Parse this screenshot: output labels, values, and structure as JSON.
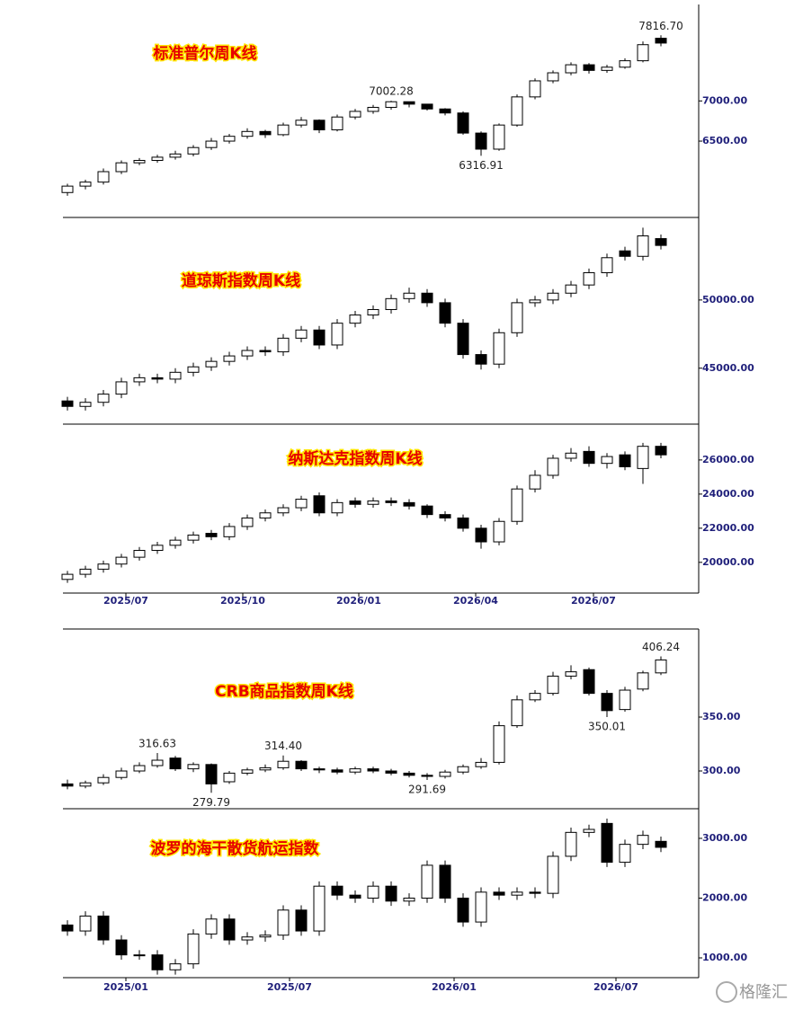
{
  "chart_data": [
    {
      "type": "candlestick",
      "xlim": [
        -0.25,
        35.1
      ],
      "xticks": [
        {
          "value": 3.25,
          "label": "2025/07"
        },
        {
          "value": 9.75,
          "label": "2025/10"
        },
        {
          "value": 16.2,
          "label": "2026/01"
        },
        {
          "value": 22.7,
          "label": "2026/04"
        },
        {
          "value": 29.25,
          "label": "2026/07"
        }
      ],
      "panels": [
        {
          "title": "标准普尔周K线",
          "ylim": [
            5550,
            8200
          ],
          "yticks": [
            {
              "value": 6500,
              "label": "6500.00"
            },
            {
              "value": 7000,
              "label": "7000.00"
            }
          ],
          "open": [
            5860,
            5940,
            5990,
            6120,
            6230,
            6260,
            6300,
            6340,
            6420,
            6500,
            6560,
            6620,
            6580,
            6700,
            6760,
            6640,
            6800,
            6870,
            6920,
            6990,
            6960,
            6900,
            6850,
            6600,
            6400,
            6700,
            7050,
            7250,
            7350,
            7450,
            7380,
            7420,
            7500,
            7780
          ],
          "high": [
            5970,
            6020,
            6160,
            6260,
            6290,
            6330,
            6380,
            6450,
            6540,
            6590,
            6660,
            6640,
            6730,
            6800,
            6770,
            6830,
            6900,
            6950,
            7002.28,
            6990,
            6960,
            6910,
            6870,
            6620,
            6720,
            7080,
            7280,
            7380,
            7480,
            7470,
            7450,
            7530,
            7740,
            7816.7
          ],
          "low": [
            5820,
            5900,
            5960,
            6090,
            6200,
            6230,
            6270,
            6310,
            6390,
            6470,
            6530,
            6540,
            6560,
            6670,
            6600,
            6620,
            6770,
            6840,
            6890,
            6920,
            6880,
            6820,
            6580,
            6316.91,
            6380,
            6680,
            7020,
            7220,
            7320,
            7340,
            7350,
            7400,
            7480,
            7680
          ],
          "close": [
            5940,
            5990,
            6120,
            6230,
            6260,
            6300,
            6340,
            6420,
            6500,
            6560,
            6620,
            6580,
            6700,
            6760,
            6640,
            6800,
            6870,
            6920,
            6990,
            6960,
            6900,
            6850,
            6600,
            6400,
            6700,
            7050,
            7250,
            7350,
            7450,
            7380,
            7420,
            7500,
            7700,
            7720
          ],
          "annotations": [
            {
              "value": 7002.28,
              "label": "7002.28"
            },
            {
              "value": 6316.91,
              "label": "6316.91"
            },
            {
              "value": 7816.7,
              "label": "7816.70"
            }
          ]
        },
        {
          "title": "道琼斯指数周K线",
          "ylim": [
            40900,
            56050
          ],
          "yticks": [
            {
              "value": 45000,
              "label": "45000.00"
            },
            {
              "value": 50000,
              "label": "50000.00"
            }
          ],
          "open": [
            42600,
            42200,
            42500,
            43100,
            44000,
            44300,
            44200,
            44700,
            45100,
            45500,
            45900,
            46300,
            46200,
            47200,
            47800,
            46700,
            48300,
            48900,
            49300,
            50100,
            50500,
            49800,
            48300,
            46000,
            45300,
            47600,
            49800,
            50000,
            50500,
            51100,
            52000,
            53600,
            53200,
            54500
          ],
          "high": [
            42900,
            42800,
            43400,
            44300,
            44600,
            44600,
            45000,
            45400,
            45800,
            46200,
            46600,
            46600,
            47500,
            48100,
            48100,
            48600,
            49200,
            49600,
            50400,
            50900,
            50800,
            50100,
            48600,
            46300,
            47900,
            50100,
            50300,
            50800,
            51400,
            52300,
            53400,
            53900,
            55300,
            54800
          ],
          "low": [
            41900,
            41900,
            42200,
            42800,
            43700,
            43900,
            43900,
            44400,
            44800,
            45200,
            45600,
            45900,
            45900,
            46900,
            46400,
            46400,
            48000,
            48600,
            49000,
            49800,
            49500,
            48000,
            45700,
            44900,
            45000,
            47300,
            49500,
            49700,
            50200,
            50800,
            51700,
            52900,
            52900,
            53700
          ],
          "close": [
            42200,
            42500,
            43100,
            44000,
            44300,
            44200,
            44700,
            45100,
            45500,
            45900,
            46300,
            46200,
            47200,
            47800,
            46700,
            48300,
            48900,
            49300,
            50100,
            50500,
            49800,
            48300,
            46000,
            45300,
            47600,
            49800,
            50000,
            50500,
            51100,
            52000,
            53100,
            53200,
            54700,
            54000
          ],
          "annotations": []
        },
        {
          "title": "纳斯达克指数周K线",
          "ylim": [
            18200,
            28100
          ],
          "yticks": [
            {
              "value": 20000,
              "label": "20000.00"
            },
            {
              "value": 22000,
              "label": "22000.00"
            },
            {
              "value": 24000,
              "label": "24000.00"
            },
            {
              "value": 26000,
              "label": "26000.00"
            }
          ],
          "open": [
            19000,
            19300,
            19600,
            19900,
            20300,
            20700,
            21000,
            21300,
            21700,
            21500,
            22100,
            22600,
            22900,
            23200,
            23900,
            22900,
            23600,
            23400,
            23600,
            23500,
            23300,
            22800,
            22600,
            22000,
            21200,
            22400,
            24300,
            25100,
            26100,
            26500,
            25800,
            26300,
            25500,
            26800
          ],
          "high": [
            19500,
            19800,
            20100,
            20500,
            20900,
            21200,
            21500,
            21800,
            21900,
            22300,
            22800,
            23100,
            23400,
            23900,
            24100,
            23700,
            23800,
            23800,
            23800,
            23700,
            23400,
            23000,
            22800,
            22200,
            22600,
            24500,
            25400,
            26300,
            26700,
            26800,
            26400,
            26500,
            27000,
            27000
          ],
          "low": [
            18800,
            19100,
            19400,
            19700,
            20100,
            20500,
            20800,
            21100,
            21300,
            21300,
            21900,
            22400,
            22700,
            23000,
            22700,
            22700,
            23200,
            23200,
            23300,
            23100,
            22600,
            22400,
            21800,
            20800,
            21000,
            22200,
            24100,
            24900,
            25900,
            25600,
            25500,
            25400,
            24600,
            26100
          ],
          "close": [
            19300,
            19600,
            19900,
            20300,
            20700,
            21000,
            21300,
            21600,
            21500,
            22100,
            22600,
            22900,
            23200,
            23700,
            22900,
            23500,
            23400,
            23600,
            23500,
            23300,
            22800,
            22600,
            22000,
            21200,
            22400,
            24300,
            25100,
            26100,
            26400,
            25800,
            26200,
            25600,
            26800,
            26300
          ],
          "annotations": []
        }
      ]
    },
    {
      "type": "candlestick",
      "xlim": [
        -0.25,
        35.1
      ],
      "xticks": [
        {
          "value": 3.25,
          "label": "2025/01"
        },
        {
          "value": 12.35,
          "label": "2025/07"
        },
        {
          "value": 21.5,
          "label": "2026/01"
        },
        {
          "value": 30.5,
          "label": "2026/07"
        }
      ],
      "panels": [
        {
          "title": "CRB商品指数周K线",
          "ylim": [
            265,
            431.7
          ],
          "yticks": [
            {
              "value": 300,
              "label": "300.00"
            },
            {
              "value": 350,
              "label": "350.00"
            }
          ],
          "open": [
            288,
            286,
            289,
            294,
            300,
            305,
            312,
            302,
            306,
            290,
            298,
            301,
            303,
            309,
            302,
            301,
            299,
            302,
            300,
            298,
            296,
            295,
            299,
            304,
            308,
            342,
            366,
            372,
            388,
            394,
            372,
            357,
            376,
            391
          ],
          "high": [
            292,
            291,
            297,
            303,
            308,
            316.63,
            314,
            308,
            307,
            300,
            303,
            306,
            314.4,
            310,
            304,
            303,
            304,
            304,
            302,
            300,
            298,
            301,
            306,
            312,
            346,
            370,
            375,
            392,
            398,
            396,
            375,
            378,
            393,
            406.24
          ],
          "low": [
            283,
            284,
            287,
            292,
            298,
            303,
            300,
            299,
            279.79,
            288,
            296,
            299,
            301,
            300,
            298,
            297,
            297,
            298,
            296,
            294,
            291.69,
            293,
            297,
            302,
            306,
            340,
            364,
            370,
            385,
            370,
            350.01,
            355,
            374,
            389
          ],
          "close": [
            286,
            289,
            294,
            300,
            305,
            310,
            302,
            306,
            288,
            298,
            301,
            303,
            309,
            302,
            301,
            299,
            302,
            300,
            298,
            296,
            295,
            299,
            304,
            308,
            342,
            366,
            372,
            388,
            392,
            372,
            356,
            375,
            391,
            403
          ],
          "annotations": [
            {
              "value": 316.63,
              "label": "316.63"
            },
            {
              "value": 279.79,
              "label": "279.79"
            },
            {
              "value": 314.4,
              "label": "314.40"
            },
            {
              "value": 291.69,
              "label": "291.69"
            },
            {
              "value": 350.01,
              "label": "350.01"
            },
            {
              "value": 406.24,
              "label": "406.24"
            }
          ]
        },
        {
          "title": "波罗的海干散货航运指数",
          "ylim": [
            669,
            3496
          ],
          "yticks": [
            {
              "value": 1000,
              "label": "1000.00"
            },
            {
              "value": 2000,
              "label": "2000.00"
            },
            {
              "value": 3000,
              "label": "3000.00"
            }
          ],
          "open": [
            1550,
            1450,
            1700,
            1300,
            1050,
            1050,
            800,
            900,
            1400,
            1650,
            1300,
            1350,
            1380,
            1800,
            1450,
            2200,
            2050,
            2000,
            2200,
            1950,
            2000,
            2550,
            2000,
            1600,
            2100,
            2050,
            2100,
            2080,
            2700,
            3100,
            3250,
            2600,
            2900,
            2950
          ],
          "high": [
            1630,
            1780,
            1780,
            1380,
            1130,
            1130,
            980,
            1480,
            1730,
            1730,
            1430,
            1460,
            1880,
            1880,
            2280,
            2280,
            2130,
            2280,
            2280,
            2080,
            2630,
            2630,
            2080,
            2180,
            2180,
            2180,
            2180,
            2780,
            3180,
            3230,
            3330,
            2980,
            3130,
            3030
          ],
          "low": [
            1370,
            1370,
            1220,
            970,
            970,
            720,
            720,
            820,
            1320,
            1220,
            1220,
            1270,
            1300,
            1370,
            1370,
            1970,
            1920,
            1920,
            1870,
            1870,
            1920,
            1920,
            1520,
            1520,
            1970,
            1970,
            2000,
            2000,
            2620,
            3020,
            2520,
            2520,
            2820,
            2770
          ],
          "close": [
            1450,
            1700,
            1300,
            1050,
            1050,
            800,
            900,
            1400,
            1650,
            1300,
            1350,
            1380,
            1800,
            1450,
            2200,
            2050,
            2000,
            2200,
            1950,
            2000,
            2550,
            2000,
            1600,
            2100,
            2050,
            2100,
            2080,
            2700,
            3100,
            3150,
            2600,
            2900,
            3050,
            2850
          ],
          "annotations": []
        }
      ]
    }
  ],
  "watermark": "格隆汇"
}
